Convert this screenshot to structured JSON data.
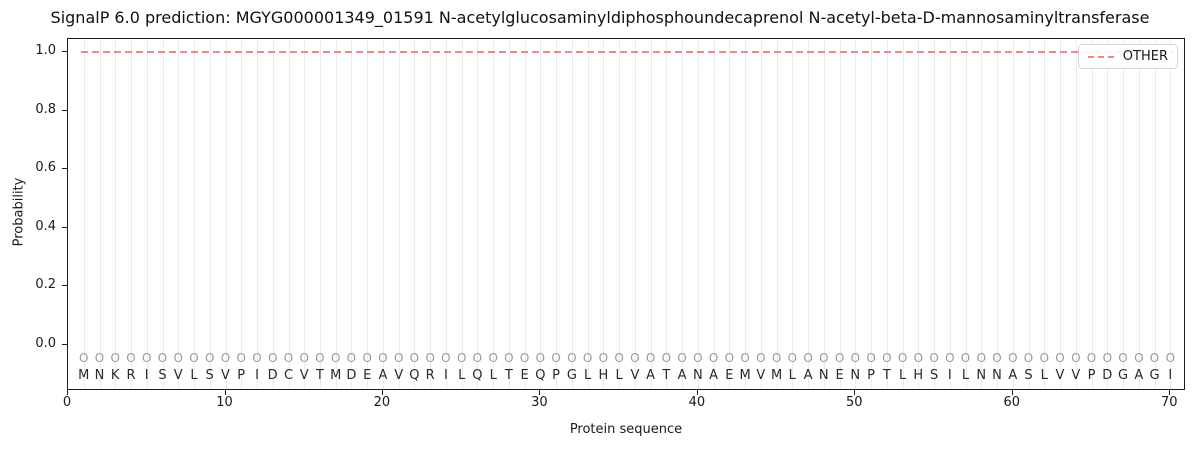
{
  "chart_data": {
    "type": "line",
    "title": "SignalP 6.0 prediction: MGYG000001349_01591 N-acetylglucosaminyldiphosphoundecaprenol N-acetyl-beta-D-mannosaminyltransferase",
    "xlabel": "Protein sequence",
    "ylabel": "Probability",
    "xlim": [
      0,
      71
    ],
    "ylim": [
      -0.16,
      1.05
    ],
    "x_ticks": [
      "0",
      "10",
      "20",
      "30",
      "40",
      "50",
      "60",
      "70"
    ],
    "y_ticks": [
      "0.0",
      "0.2",
      "0.4",
      "0.6",
      "0.8",
      "1.0"
    ],
    "grid": "vertical gridline at every residue position",
    "legend": {
      "position": "upper right",
      "entries": [
        {
          "label": "OTHER",
          "color": "#f28585",
          "linestyle": "dashed"
        }
      ]
    },
    "series": [
      {
        "name": "OTHER",
        "color": "#f28585",
        "linestyle": "dashed",
        "y_constant": 1.0,
        "x_start": 1,
        "x_end": 70
      }
    ],
    "sequence": "MNKRISVLSVPIDCVTMDEAVQRILQLTEQPGLHLVATANAEMVMLANENPTLHSILNNASLVVPDGAGI",
    "per_position_label": "O",
    "colors": {
      "line": "#f28585",
      "grid": "#ececec",
      "position_marker": "#9a9a9a",
      "residue_text": "#2a2a2a"
    }
  }
}
